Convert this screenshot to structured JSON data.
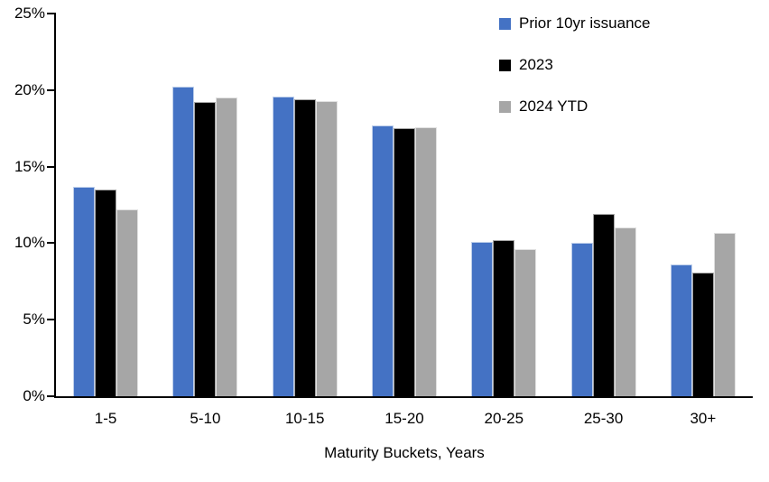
{
  "chart_data": {
    "type": "bar",
    "categories": [
      "1-5",
      "5-10",
      "10-15",
      "15-20",
      "20-25",
      "25-30",
      "30+"
    ],
    "series": [
      {
        "name": "Prior 10yr issuance",
        "color": "#4472C4",
        "values": [
          13.7,
          20.2,
          19.6,
          17.7,
          10.1,
          10.0,
          8.6
        ]
      },
      {
        "name": "2023",
        "color": "#000000",
        "values": [
          13.5,
          19.2,
          19.4,
          17.5,
          10.2,
          11.9,
          8.1
        ]
      },
      {
        "name": "2024 YTD",
        "color": "#A6A6A6",
        "values": [
          12.2,
          19.5,
          19.3,
          17.6,
          9.6,
          11.0,
          10.7
        ]
      }
    ],
    "xlabel": "Maturity Buckets, Years",
    "ylim": [
      0,
      25
    ],
    "yticks": [
      {
        "value": 25,
        "label": "25%"
      },
      {
        "value": 20,
        "label": "20%"
      },
      {
        "value": 15,
        "label": "15%"
      },
      {
        "value": 10,
        "label": "10%"
      },
      {
        "value": 5,
        "label": "5%"
      },
      {
        "value": 0,
        "label": "0%"
      }
    ],
    "grid": false,
    "legend_position": "top-right"
  },
  "colors": {
    "axis": "#000000",
    "background": "#FFFFFF",
    "text": "#000000"
  }
}
